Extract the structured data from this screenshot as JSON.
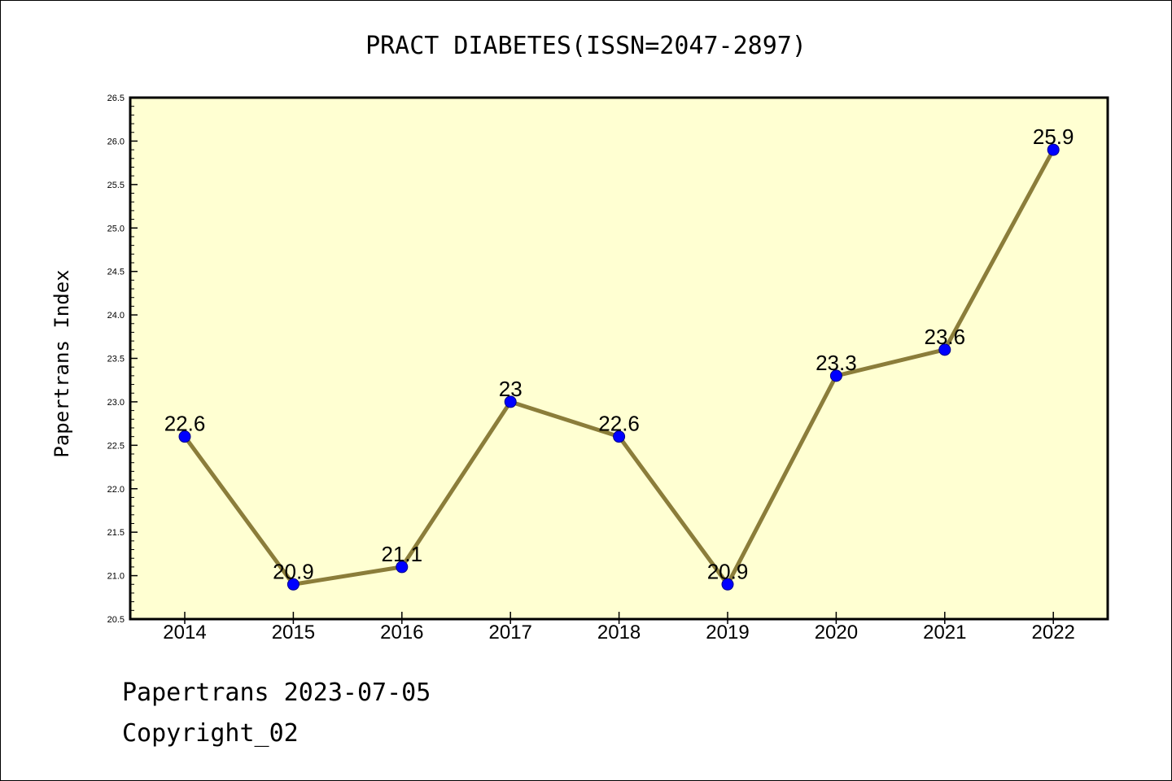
{
  "chart_data": {
    "type": "line",
    "title": "PRACT DIABETES(ISSN=2047-2897)",
    "xlabel": "",
    "ylabel": "Papertrans Index",
    "categories": [
      "2014",
      "2015",
      "2016",
      "2017",
      "2018",
      "2019",
      "2020",
      "2021",
      "2022"
    ],
    "series": [
      {
        "values": [
          22.6,
          20.9,
          21.1,
          23,
          22.6,
          20.9,
          23.3,
          23.6,
          25.9
        ],
        "labels": [
          "22.6",
          "20.9",
          "21.1",
          "23",
          "22.6",
          "20.9",
          "23.3",
          "23.6",
          "25.9"
        ],
        "line_color": "#8b7d3a",
        "marker_color": "#0000ff"
      }
    ],
    "ylim": [
      20.5,
      26.5
    ],
    "yticks": [
      "20.5",
      "21.0",
      "21.5",
      "22.0",
      "22.5",
      "23.0",
      "23.5",
      "24.0",
      "24.5",
      "25.0",
      "25.5",
      "26.0",
      "26.5"
    ],
    "plot_background": "#ffffd2",
    "grid": false
  },
  "footer": {
    "line1": "Papertrans 2023-07-05",
    "line2": "Copyright_02"
  }
}
